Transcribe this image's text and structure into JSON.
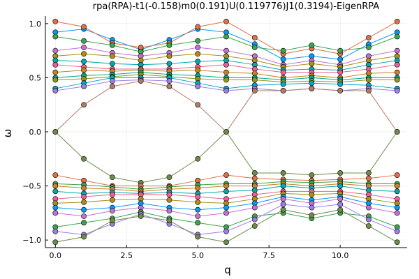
{
  "chart_data": {
    "type": "scatter",
    "title": "rpa(RPA)-t1(-0.158)m0(0.191)U(0.119776)J1(0.3194)-EigenRPA",
    "xlabel": "q",
    "ylabel": "ω",
    "xlim": [
      -0.35,
      12.35
    ],
    "ylim": [
      -1.07,
      1.07
    ],
    "xticks": [
      0,
      2.5,
      5,
      7.5,
      10
    ],
    "xtick_labels": [
      "0.0",
      "2.5",
      "5.0",
      "7.5",
      "10.0"
    ],
    "yticks": [
      -1,
      -0.5,
      0,
      0.5,
      1
    ],
    "ytick_labels": [
      "−1.0",
      "−0.5",
      "0.0",
      "0.5",
      "1.0"
    ],
    "grid": true,
    "legend": "none",
    "x": [
      0,
      1,
      2,
      3,
      4,
      5,
      6,
      7,
      8,
      9,
      10,
      11,
      12
    ],
    "series": [
      {
        "color": "#009af9",
        "values": [
          0.92,
          0.95,
          0.85,
          0.76,
          0.85,
          0.95,
          0.92,
          0.81,
          0.67,
          0.7,
          0.67,
          0.81,
          0.92
        ]
      },
      {
        "color": "#e26f46",
        "values": [
          1.02,
          0.97,
          0.82,
          0.78,
          0.82,
          0.97,
          1.02,
          0.87,
          0.72,
          0.77,
          0.72,
          0.87,
          1.02
        ]
      },
      {
        "color": "#3da44d",
        "values": [
          0.88,
          0.84,
          0.8,
          0.74,
          0.8,
          0.84,
          0.88,
          0.78,
          0.75,
          0.8,
          0.75,
          0.78,
          0.88
        ]
      },
      {
        "color": "#c271d2",
        "values": [
          0.75,
          0.78,
          0.73,
          0.7,
          0.73,
          0.78,
          0.75,
          0.7,
          0.62,
          0.66,
          0.62,
          0.7,
          0.75
        ]
      },
      {
        "color": "#ac8e18",
        "values": [
          0.7,
          0.72,
          0.7,
          0.66,
          0.7,
          0.72,
          0.7,
          0.66,
          0.6,
          0.63,
          0.6,
          0.66,
          0.7
        ]
      },
      {
        "color": "#00a9ad",
        "values": [
          0.66,
          0.65,
          0.63,
          0.62,
          0.63,
          0.65,
          0.66,
          0.62,
          0.57,
          0.58,
          0.57,
          0.62,
          0.66
        ]
      },
      {
        "color": "#ed5e93",
        "values": [
          0.62,
          0.6,
          0.58,
          0.58,
          0.58,
          0.6,
          0.62,
          0.58,
          0.55,
          0.55,
          0.55,
          0.58,
          0.62
        ]
      },
      {
        "color": "#c68225",
        "values": [
          0.55,
          0.57,
          0.56,
          0.57,
          0.56,
          0.57,
          0.55,
          0.54,
          0.5,
          0.52,
          0.5,
          0.54,
          0.55
        ]
      },
      {
        "color": "#00a98d",
        "values": [
          0.5,
          0.52,
          0.53,
          0.55,
          0.53,
          0.52,
          0.5,
          0.5,
          0.48,
          0.5,
          0.48,
          0.5,
          0.5
        ]
      },
      {
        "color": "#8e971d",
        "values": [
          0.48,
          0.49,
          0.51,
          0.53,
          0.51,
          0.49,
          0.48,
          0.48,
          0.46,
          0.47,
          0.46,
          0.48,
          0.48
        ]
      },
      {
        "color": "#00a8cb",
        "values": [
          0.4,
          0.45,
          0.5,
          0.5,
          0.5,
          0.45,
          0.4,
          0.43,
          0.44,
          0.45,
          0.44,
          0.43,
          0.4
        ]
      },
      {
        "color": "#9b7fe8",
        "values": [
          0.38,
          0.42,
          0.47,
          0.48,
          0.47,
          0.42,
          0.38,
          0.4,
          0.38,
          0.4,
          0.38,
          0.4,
          0.38
        ]
      },
      {
        "color": "#b17b69",
        "values": [
          0.0,
          0.25,
          0.42,
          0.47,
          0.42,
          0.25,
          0.0,
          0.38,
          0.38,
          0.4,
          0.38,
          0.38,
          0.0
        ]
      },
      {
        "color": "#6f8c4b",
        "values": [
          0.0,
          -0.25,
          -0.42,
          -0.47,
          -0.42,
          -0.25,
          0.0,
          -0.38,
          -0.38,
          -0.4,
          -0.38,
          -0.38,
          0.0
        ]
      },
      {
        "color": "#e26f46",
        "values": [
          -0.4,
          -0.45,
          -0.5,
          -0.5,
          -0.5,
          -0.45,
          -0.4,
          -0.43,
          -0.44,
          -0.45,
          -0.44,
          -0.43,
          -0.4
        ]
      },
      {
        "color": "#3da44d",
        "values": [
          -0.48,
          -0.49,
          -0.51,
          -0.53,
          -0.51,
          -0.49,
          -0.48,
          -0.48,
          -0.46,
          -0.47,
          -0.46,
          -0.48,
          -0.48
        ]
      },
      {
        "color": "#c68225",
        "values": [
          -0.5,
          -0.52,
          -0.53,
          -0.55,
          -0.53,
          -0.52,
          -0.5,
          -0.5,
          -0.48,
          -0.5,
          -0.48,
          -0.5,
          -0.5
        ]
      },
      {
        "color": "#00a9ad",
        "values": [
          -0.55,
          -0.57,
          -0.56,
          -0.57,
          -0.56,
          -0.57,
          -0.55,
          -0.54,
          -0.5,
          -0.52,
          -0.5,
          -0.54,
          -0.55
        ]
      },
      {
        "color": "#ed5e93",
        "values": [
          -0.62,
          -0.6,
          -0.58,
          -0.58,
          -0.58,
          -0.6,
          -0.62,
          -0.58,
          -0.55,
          -0.55,
          -0.55,
          -0.58,
          -0.62
        ]
      },
      {
        "color": "#ac8e18",
        "values": [
          -0.66,
          -0.65,
          -0.63,
          -0.62,
          -0.63,
          -0.65,
          -0.66,
          -0.62,
          -0.57,
          -0.58,
          -0.57,
          -0.62,
          -0.66
        ]
      },
      {
        "color": "#009af9",
        "values": [
          -0.7,
          -0.72,
          -0.7,
          -0.66,
          -0.7,
          -0.72,
          -0.7,
          -0.66,
          -0.6,
          -0.63,
          -0.6,
          -0.66,
          -0.7
        ]
      },
      {
        "color": "#c271d2",
        "values": [
          -0.75,
          -0.78,
          -0.73,
          -0.7,
          -0.73,
          -0.78,
          -0.75,
          -0.7,
          -0.62,
          -0.66,
          -0.62,
          -0.7,
          -0.75
        ]
      },
      {
        "color": "#3da44d",
        "values": [
          -0.88,
          -0.84,
          -0.8,
          -0.74,
          -0.8,
          -0.84,
          -0.88,
          -0.78,
          -0.75,
          -0.8,
          -0.75,
          -0.78,
          -0.88
        ]
      },
      {
        "color": "#9b7fe8",
        "values": [
          -0.92,
          -0.95,
          -0.85,
          -0.76,
          -0.85,
          -0.95,
          -0.92,
          -0.81,
          -0.67,
          -0.7,
          -0.67,
          -0.81,
          -0.92
        ]
      },
      {
        "color": "#6f8c4b",
        "values": [
          -1.02,
          -0.97,
          -0.82,
          -0.78,
          -0.82,
          -0.97,
          -1.02,
          -0.87,
          -0.72,
          -0.77,
          -0.72,
          -0.87,
          -1.02
        ]
      }
    ]
  }
}
